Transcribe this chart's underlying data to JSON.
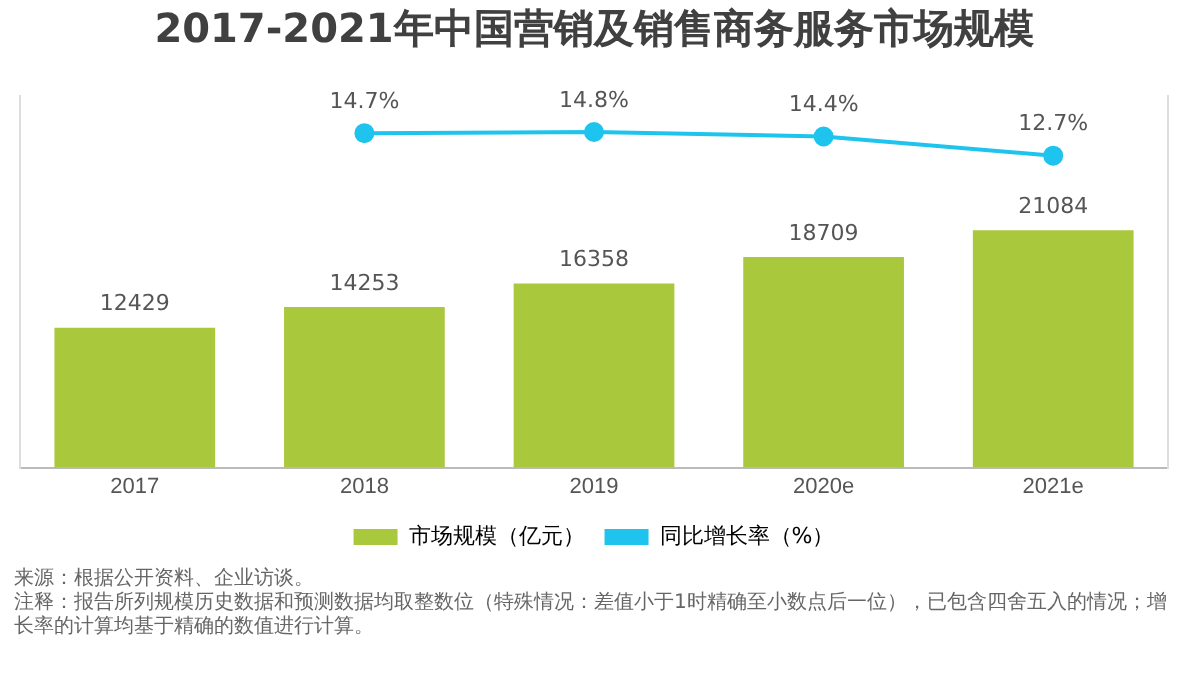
{
  "chart_data": {
    "type": "bar",
    "title": "2017-2021年中国营销及销售商务服务市场规模",
    "categories": [
      "2017",
      "2018",
      "2019",
      "2020e",
      "2021e"
    ],
    "series": [
      {
        "name": "市场规模（亿元）",
        "color": "#a9c83c",
        "values": [
          12429,
          14253,
          16358,
          18709,
          21084
        ]
      },
      {
        "name": "同比增长率（%）",
        "type": "line",
        "axis": "y2",
        "color": "#1ec4ee",
        "values": [
          null,
          14.7,
          14.8,
          14.4,
          12.7
        ],
        "value_labels": [
          null,
          "14.7%",
          "14.8%",
          "14.4%",
          "12.7%"
        ]
      }
    ],
    "ylim": [
      0,
      33000
    ],
    "y2lim": [
      -15,
      18
    ],
    "tick_labels": "x",
    "grid": false,
    "legend": "bottom",
    "marker": "circle",
    "data_labels": true,
    "annotations": [
      "来源：根据公开资料、企业访谈。",
      "注释：报告所列规模历史数据和预测数据均取整数位（特殊情况：差值小于1时精确至小数点后一位），已包含四舍五入的情况；增长率的计算均基于精确的数值进行计算。"
    ]
  }
}
